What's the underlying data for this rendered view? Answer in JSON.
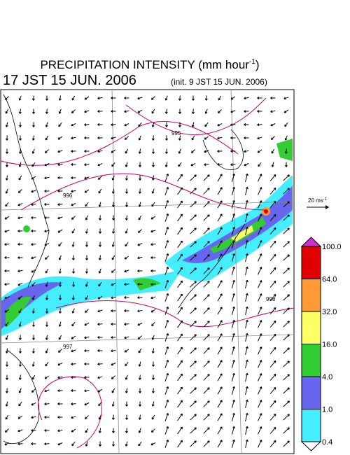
{
  "header": {
    "title": {
      "prefix": "PRECIPITATION INTENSITY (mm hour",
      "exponent": "-1",
      "suffix": ")"
    },
    "valid_time": "17 JST 15 JUN. 2006",
    "init_time": "(init. 9 JST 15 JUN. 2006)"
  },
  "wind_scale": {
    "prefix": "20 ms",
    "exponent": "-1"
  },
  "contour_labels": [
    "995",
    "996",
    "997",
    "998"
  ],
  "colorbar": {
    "levels": [
      "100.0",
      "64.0",
      "32.0",
      "16.0",
      "4.0",
      "1.0",
      "0.4"
    ],
    "colors": [
      "#cc33cc",
      "#e00000",
      "#ff9933",
      "#ffff66",
      "#33cc33",
      "#6666ee",
      "#44eeff",
      "#ffffff"
    ]
  }
}
